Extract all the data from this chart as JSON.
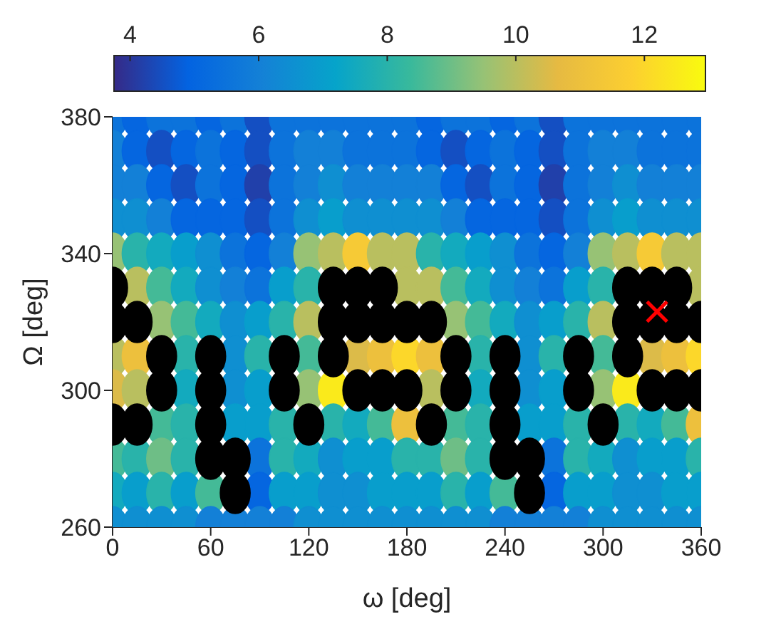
{
  "chart_data": {
    "type": "scatter",
    "xlabel": "ω [deg]",
    "ylabel": "Ω [deg]",
    "xlim": [
      0,
      360
    ],
    "xticks": [
      0,
      60,
      120,
      180,
      240,
      300,
      360
    ],
    "ylim": [
      260,
      380
    ],
    "yticks": [
      260,
      300,
      340,
      380
    ],
    "clim": [
      3.75,
      12.95
    ],
    "cticks": [
      4,
      6,
      8,
      10,
      12
    ],
    "marker": "circle",
    "x": [
      0,
      15,
      30,
      45,
      60,
      75,
      90,
      105,
      120,
      135,
      150,
      165,
      180,
      195,
      210,
      225,
      240,
      255,
      270,
      285,
      300,
      315,
      330,
      345,
      360
    ],
    "series": [
      {
        "values": [
          380,
          380,
          380,
          380,
          380,
          380,
          380,
          380,
          380,
          380,
          380,
          380,
          380,
          380,
          380,
          380,
          380,
          380,
          380,
          380,
          380,
          380,
          380,
          380,
          380
        ],
        "cvalues": [
          5.5,
          5,
          5.5,
          5.5,
          5,
          5.5,
          4.5,
          5.5,
          5.5,
          5.5,
          5.5,
          5.5,
          5.5,
          5,
          5.5,
          5.5,
          5,
          5.5,
          4.5,
          5.5,
          5.5,
          5.5,
          5.5,
          5.5,
          5.5
        ],
        "colors": [
          "#0c73db",
          "#0566e0",
          "#0c73db",
          "#0c73db",
          "#0566e0",
          "#0c73db",
          "#144fc2",
          "#0c73db",
          "#0c73db",
          "#0c73db",
          "#0c73db",
          "#0c73db",
          "#0c73db",
          "#0566e0",
          "#0c73db",
          "#0c73db",
          "#0566e0",
          "#0c73db",
          "#144fc2",
          "#0c73db",
          "#0c73db",
          "#0c73db",
          "#0c73db",
          "#0c73db",
          "#0c73db"
        ]
      },
      {
        "values": [
          370,
          370,
          370,
          370,
          370,
          370,
          370,
          370,
          370,
          370,
          370,
          370,
          370,
          370,
          370,
          370,
          370,
          370,
          370,
          370,
          370,
          370,
          370,
          370,
          370
        ],
        "cvalues": [
          6,
          5,
          4.5,
          5,
          5.5,
          5,
          4.5,
          5.5,
          6,
          6,
          5.5,
          5.5,
          5.5,
          5,
          4.5,
          5,
          5.5,
          5,
          4.5,
          5.5,
          6,
          6,
          5.5,
          5.5,
          5.5
        ],
        "colors": [
          "#1380d7",
          "#0566e0",
          "#144fc2",
          "#0566e0",
          "#0c73db",
          "#0566e0",
          "#144fc2",
          "#0c73db",
          "#1380d7",
          "#1380d7",
          "#0c73db",
          "#0c73db",
          "#0c73db",
          "#0566e0",
          "#144fc2",
          "#0566e0",
          "#0c73db",
          "#0566e0",
          "#144fc2",
          "#0c73db",
          "#1380d7",
          "#1380d7",
          "#0c73db",
          "#0c73db",
          "#0c73db"
        ]
      },
      {
        "values": [
          360,
          360,
          360,
          360,
          360,
          360,
          360,
          360,
          360,
          360,
          360,
          360,
          360,
          360,
          360,
          360,
          360,
          360,
          360,
          360,
          360,
          360,
          360,
          360,
          360
        ],
        "cvalues": [
          6,
          6,
          5,
          4.5,
          5.5,
          5,
          4.2,
          5.5,
          6,
          6.5,
          6,
          6,
          6,
          6,
          5,
          4.5,
          5.5,
          5,
          4.2,
          5.5,
          6,
          6.5,
          6,
          6,
          6
        ],
        "colors": [
          "#1380d7",
          "#1380d7",
          "#0566e0",
          "#144fc2",
          "#0c73db",
          "#0566e0",
          "#2140aa",
          "#0c73db",
          "#1380d7",
          "#0f8fd1",
          "#1380d7",
          "#1380d7",
          "#1380d7",
          "#1380d7",
          "#0566e0",
          "#144fc2",
          "#0c73db",
          "#0566e0",
          "#2140aa",
          "#0c73db",
          "#1380d7",
          "#0f8fd1",
          "#1380d7",
          "#1380d7",
          "#1380d7"
        ]
      },
      {
        "values": [
          350,
          350,
          350,
          350,
          350,
          350,
          350,
          350,
          350,
          350,
          350,
          350,
          350,
          350,
          350,
          350,
          350,
          350,
          350,
          350,
          350,
          350,
          350,
          350,
          350
        ],
        "cvalues": [
          6.5,
          6.5,
          6,
          5,
          5,
          5,
          4.5,
          5.5,
          6.5,
          7,
          6.5,
          6.5,
          6.5,
          6.5,
          6,
          5,
          5,
          5,
          4.5,
          5.5,
          6.5,
          7,
          6.5,
          6.5,
          6.5
        ],
        "colors": [
          "#0f8fd1",
          "#0f8fd1",
          "#1380d7",
          "#0566e0",
          "#0566e0",
          "#0566e0",
          "#144fc2",
          "#0c73db",
          "#0f8fd1",
          "#089ecc",
          "#0f8fd1",
          "#0f8fd1",
          "#0f8fd1",
          "#0f8fd1",
          "#1380d7",
          "#0566e0",
          "#0566e0",
          "#0566e0",
          "#144fc2",
          "#0c73db",
          "#0f8fd1",
          "#089ecc",
          "#0f8fd1",
          "#0f8fd1",
          "#0f8fd1"
        ]
      },
      {
        "values": [
          340,
          340,
          340,
          340,
          340,
          340,
          340,
          340,
          340,
          340,
          340,
          340,
          340,
          340,
          340,
          340,
          340,
          340,
          340,
          340,
          340,
          340,
          340,
          340,
          340
        ],
        "cvalues": [
          9.5,
          8,
          7.5,
          7,
          6.5,
          5.5,
          5,
          6,
          9.5,
          10,
          11.5,
          10,
          10,
          8,
          7.5,
          7,
          6.5,
          5.5,
          5,
          6,
          9.5,
          10,
          11.5,
          10,
          10
        ],
        "colors": [
          "#97c275",
          "#29b3aa",
          "#13aabe",
          "#089ecc",
          "#0f8fd1",
          "#0c73db",
          "#0566e0",
          "#1380d7",
          "#97c275",
          "#b9bf5f",
          "#f6ca36",
          "#b9bf5f",
          "#b9bf5f",
          "#29b3aa",
          "#13aabe",
          "#089ecc",
          "#0f8fd1",
          "#0c73db",
          "#0566e0",
          "#1380d7",
          "#97c275",
          "#b9bf5f",
          "#f6ca36",
          "#b9bf5f",
          "#b9bf5f"
        ]
      },
      {
        "values": [
          null,
          330,
          330,
          330,
          330,
          330,
          330,
          330,
          330,
          null,
          null,
          null,
          330,
          330,
          330,
          330,
          330,
          330,
          330,
          330,
          330,
          null,
          null,
          null,
          330
        ],
        "cvalues": [
          null,
          10,
          8.5,
          7.5,
          6.5,
          6,
          5.5,
          7,
          8,
          null,
          null,
          null,
          10,
          10,
          8.5,
          7.5,
          6.5,
          6,
          5.5,
          7,
          8,
          null,
          null,
          null,
          10
        ],
        "colors": [
          null,
          "#b9bf5f",
          "#44ba97",
          "#13aabe",
          "#0f8fd1",
          "#1380d7",
          "#0c73db",
          "#089ecc",
          "#29b3aa",
          null,
          null,
          null,
          "#b9bf5f",
          "#b9bf5f",
          "#44ba97",
          "#13aabe",
          "#0f8fd1",
          "#1380d7",
          "#0c73db",
          "#089ecc",
          "#29b3aa",
          null,
          null,
          null,
          "#b9bf5f"
        ]
      },
      {
        "values": [
          null,
          null,
          320,
          320,
          320,
          320,
          320,
          320,
          320,
          null,
          null,
          null,
          null,
          null,
          320,
          320,
          320,
          320,
          320,
          320,
          320,
          null,
          null,
          null,
          null
        ],
        "cvalues": [
          null,
          null,
          9.5,
          8.5,
          7.5,
          6.5,
          7,
          8,
          10,
          null,
          null,
          null,
          null,
          null,
          9.5,
          8.5,
          7.5,
          6.5,
          7,
          8,
          10,
          null,
          null,
          null,
          null
        ],
        "colors": [
          null,
          null,
          "#97c275",
          "#44ba97",
          "#13aabe",
          "#0f8fd1",
          "#089ecc",
          "#29b3aa",
          "#b9bf5f",
          null,
          null,
          null,
          null,
          null,
          "#97c275",
          "#44ba97",
          "#13aabe",
          "#0f8fd1",
          "#089ecc",
          "#29b3aa",
          "#b9bf5f",
          null,
          null,
          null,
          null
        ]
      },
      {
        "values": [
          310,
          310,
          null,
          310,
          null,
          310,
          310,
          null,
          310,
          null,
          310,
          310,
          310,
          310,
          null,
          310,
          null,
          310,
          310,
          null,
          310,
          null,
          310,
          310,
          310
        ],
        "cvalues": [
          10,
          11,
          null,
          8,
          null,
          6.5,
          8,
          null,
          8.5,
          null,
          10.5,
          11,
          12,
          11,
          null,
          8,
          null,
          6.5,
          8,
          null,
          8.5,
          null,
          10.5,
          11,
          12
        ],
        "colors": [
          "#b9bf5f",
          "#edc03d",
          null,
          "#29b3aa",
          null,
          "#0f8fd1",
          "#29b3aa",
          null,
          "#44ba97",
          null,
          "#dcbb49",
          "#edc03d",
          "#fcd72a",
          "#edc03d",
          null,
          "#29b3aa",
          null,
          "#0f8fd1",
          "#29b3aa",
          null,
          "#44ba97",
          null,
          "#dcbb49",
          "#edc03d",
          "#fcd72a"
        ]
      },
      {
        "values": [
          300,
          300,
          null,
          300,
          null,
          300,
          300,
          null,
          300,
          300,
          null,
          null,
          null,
          300,
          null,
          300,
          null,
          300,
          300,
          null,
          300,
          300,
          null,
          null,
          null
        ],
        "cvalues": [
          10.5,
          10,
          null,
          7.5,
          null,
          6.5,
          7,
          null,
          9.5,
          12.5,
          null,
          null,
          null,
          10,
          null,
          7.5,
          null,
          6.5,
          7,
          null,
          9.5,
          12.5,
          null,
          null,
          null
        ],
        "colors": [
          "#dcbb49",
          "#b9bf5f",
          null,
          "#13aabe",
          null,
          "#0f8fd1",
          "#089ecc",
          null,
          "#97c275",
          "#faea1b",
          null,
          null,
          null,
          "#b9bf5f",
          null,
          "#13aabe",
          null,
          "#0f8fd1",
          "#089ecc",
          null,
          "#97c275",
          "#faea1b",
          null,
          null,
          null
        ]
      },
      {
        "values": [
          null,
          null,
          290,
          290,
          null,
          290,
          290,
          290,
          null,
          290,
          290,
          290,
          290,
          null,
          290,
          290,
          null,
          290,
          290,
          290,
          null,
          290,
          290,
          290,
          290
        ],
        "cvalues": [
          null,
          null,
          8.5,
          8,
          null,
          7,
          7,
          8,
          null,
          8,
          7.5,
          8.5,
          11,
          null,
          8.5,
          8,
          null,
          7,
          7,
          8,
          null,
          8,
          7.5,
          8.5,
          11
        ],
        "colors": [
          null,
          null,
          "#44ba97",
          "#29b3aa",
          null,
          "#089ecc",
          "#089ecc",
          "#29b3aa",
          null,
          "#29b3aa",
          "#13aabe",
          "#44ba97",
          "#edc03d",
          null,
          "#44ba97",
          "#29b3aa",
          null,
          "#089ecc",
          "#089ecc",
          "#29b3aa",
          null,
          "#29b3aa",
          "#13aabe",
          "#44ba97",
          "#edc03d"
        ]
      },
      {
        "values": [
          280,
          280,
          280,
          280,
          null,
          null,
          280,
          280,
          280,
          280,
          280,
          280,
          280,
          280,
          280,
          280,
          null,
          null,
          280,
          280,
          280,
          280,
          280,
          280,
          280
        ],
        "cvalues": [
          8.5,
          8,
          9,
          8,
          null,
          null,
          5.5,
          8,
          7.5,
          6.5,
          7,
          7,
          8,
          8,
          9,
          8,
          null,
          null,
          5.5,
          8,
          7.5,
          6.5,
          7,
          7,
          8
        ],
        "colors": [
          "#44ba97",
          "#29b3aa",
          "#6ebe86",
          "#29b3aa",
          null,
          null,
          "#0c73db",
          "#29b3aa",
          "#13aabe",
          "#0f8fd1",
          "#089ecc",
          "#089ecc",
          "#29b3aa",
          "#29b3aa",
          "#6ebe86",
          "#29b3aa",
          null,
          null,
          "#0c73db",
          "#29b3aa",
          "#13aabe",
          "#0f8fd1",
          "#089ecc",
          "#089ecc",
          "#29b3aa"
        ]
      },
      {
        "values": [
          270,
          270,
          270,
          270,
          270,
          null,
          270,
          270,
          270,
          270,
          270,
          270,
          270,
          270,
          270,
          270,
          270,
          null,
          270,
          270,
          270,
          270,
          270,
          270,
          270
        ],
        "cvalues": [
          7.5,
          7,
          8,
          7,
          8.5,
          null,
          5,
          7,
          7,
          6.5,
          6.5,
          7,
          7,
          7,
          8,
          7,
          8.5,
          null,
          5,
          7,
          7,
          6.5,
          6.5,
          7,
          7
        ],
        "colors": [
          "#13aabe",
          "#089ecc",
          "#29b3aa",
          "#089ecc",
          "#44ba97",
          null,
          "#0566e0",
          "#089ecc",
          "#089ecc",
          "#0f8fd1",
          "#0f8fd1",
          "#089ecc",
          "#089ecc",
          "#089ecc",
          "#29b3aa",
          "#089ecc",
          "#44ba97",
          null,
          "#0566e0",
          "#089ecc",
          "#089ecc",
          "#0f8fd1",
          "#0f8fd1",
          "#089ecc",
          "#089ecc"
        ]
      },
      {
        "values": [
          260,
          260,
          260,
          260,
          260,
          260,
          260,
          260,
          260,
          260,
          260,
          260,
          260,
          260,
          260,
          260,
          260,
          260,
          260,
          260,
          260,
          260,
          260,
          260,
          260
        ],
        "cvalues": [
          6.5,
          6.5,
          6.5,
          6.5,
          6,
          6,
          6,
          6,
          6.5,
          6.5,
          6.5,
          6.5,
          6.5,
          6.5,
          6.5,
          6.5,
          6,
          6,
          6,
          6,
          6.5,
          6.5,
          6.5,
          6.5,
          6.5
        ],
        "colors": [
          "#0f8fd1",
          "#0f8fd1",
          "#0f8fd1",
          "#0f8fd1",
          "#1380d7",
          "#1380d7",
          "#1380d7",
          "#1380d7",
          "#0f8fd1",
          "#0f8fd1",
          "#0f8fd1",
          "#0f8fd1",
          "#0f8fd1",
          "#0f8fd1",
          "#0f8fd1",
          "#0f8fd1",
          "#1380d7",
          "#1380d7",
          "#1380d7",
          "#1380d7",
          "#0f8fd1",
          "#0f8fd1",
          "#0f8fd1",
          "#0f8fd1",
          "#0f8fd1"
        ]
      },
      {
        "color": "#000000",
        "values": [
          330,
          null,
          null,
          null,
          null,
          null,
          null,
          null,
          null,
          330,
          330,
          330,
          null,
          null,
          null,
          null,
          null,
          null,
          null,
          null,
          null,
          330,
          330,
          330,
          null
        ]
      },
      {
        "color": "#000000",
        "values": [
          320,
          320,
          null,
          null,
          null,
          null,
          null,
          null,
          null,
          320,
          320,
          320,
          320,
          320,
          null,
          null,
          null,
          null,
          null,
          null,
          null,
          320,
          320,
          320,
          320
        ]
      },
      {
        "color": "#000000",
        "values": [
          null,
          null,
          310,
          null,
          310,
          null,
          null,
          310,
          null,
          310,
          null,
          null,
          null,
          null,
          310,
          null,
          310,
          null,
          null,
          310,
          null,
          310,
          null,
          null,
          null
        ]
      },
      {
        "color": "#000000",
        "values": [
          null,
          null,
          300,
          null,
          300,
          null,
          null,
          300,
          null,
          null,
          300,
          300,
          300,
          null,
          300,
          null,
          300,
          null,
          null,
          300,
          null,
          null,
          300,
          300,
          300
        ]
      },
      {
        "color": "#000000",
        "values": [
          290,
          290,
          null,
          null,
          290,
          null,
          null,
          null,
          290,
          null,
          null,
          null,
          null,
          290,
          null,
          null,
          290,
          null,
          null,
          null,
          290,
          null,
          null,
          null,
          null
        ]
      },
      {
        "color": "#000000",
        "values": [
          null,
          null,
          null,
          null,
          280,
          280,
          null,
          null,
          null,
          null,
          null,
          null,
          null,
          null,
          null,
          null,
          280,
          280,
          null,
          null,
          null,
          null,
          null,
          null,
          null
        ]
      },
      {
        "color": "#000000",
        "values": [
          null,
          null,
          null,
          null,
          null,
          270,
          null,
          null,
          null,
          null,
          null,
          null,
          null,
          null,
          null,
          null,
          null,
          270,
          null,
          null,
          null,
          null,
          null,
          null,
          null
        ]
      },
      {
        "color": "#ff0000",
        "marker": "cross",
        "x": [
          333
        ],
        "values": [
          323
        ]
      }
    ]
  }
}
